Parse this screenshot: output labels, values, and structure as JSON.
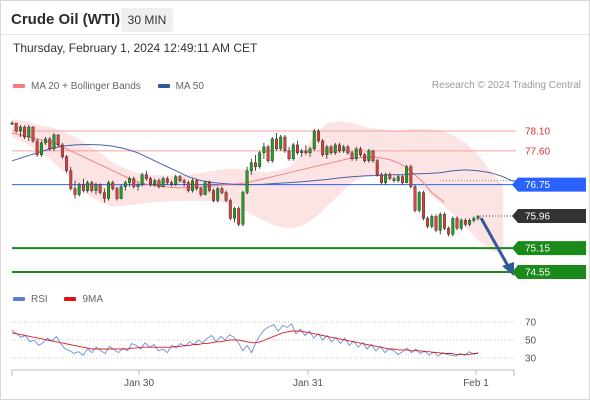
{
  "header": {
    "title": "Crude Oil (WTI)",
    "timeframe": "30 MIN"
  },
  "timestamp": "Thursday, February 1, 2024 12:49:11 AM CET",
  "legend_top": [
    {
      "label": "MA 20 + Bollinger Bands",
      "color": "#f08080"
    },
    {
      "label": "MA 50",
      "color": "#2f5b9c"
    }
  ],
  "credit": "Research © 2024 Trading Central",
  "legend_bottom": [
    {
      "label": "RSI",
      "color": "#5b7fd6"
    },
    {
      "label": "9MA",
      "color": "#e01010"
    }
  ],
  "colors": {
    "bullish": "#1fa11f",
    "bearish": "#d94040",
    "resistance": "#f5a0a0",
    "pivot": "#2962ff",
    "support": "#1a8a1a",
    "current": "#333333",
    "arrow": "#2f5b9c",
    "band_fill": "#fde4e4",
    "ma20": "#f08080",
    "ma50": "#4a5fa8",
    "rsi": "#6a8fe0",
    "rsi_ma": "#d82020"
  },
  "chart_data": [
    {
      "type": "candlestick",
      "title": "Crude Oil (WTI)",
      "timeframe": "30 MIN",
      "x_tick_labels": [
        "Jan 30",
        "Jan 31",
        "Feb 1"
      ],
      "ylim": [
        74.2,
        78.55
      ],
      "levels": [
        {
          "value": 78.1,
          "label": "78.10",
          "kind": "resistance"
        },
        {
          "value": 77.6,
          "label": "77.60",
          "kind": "resistance"
        },
        {
          "value": 76.75,
          "label": "76.75",
          "kind": "pivot"
        },
        {
          "value": 75.96,
          "label": "75.96",
          "kind": "current"
        },
        {
          "value": 75.15,
          "label": "75.15",
          "kind": "support"
        },
        {
          "value": 74.55,
          "label": "74.55",
          "kind": "support"
        }
      ],
      "candles": [
        [
          78.3,
          78.35,
          78.25,
          78.3
        ],
        [
          78.3,
          78.28,
          78.05,
          78.1
        ],
        [
          78.1,
          78.25,
          77.95,
          78.2
        ],
        [
          78.2,
          78.24,
          77.9,
          77.95
        ],
        [
          77.95,
          78.25,
          77.85,
          78.2
        ],
        [
          78.2,
          78.22,
          77.8,
          77.85
        ],
        [
          77.85,
          77.9,
          77.45,
          77.5
        ],
        [
          77.5,
          77.85,
          77.45,
          77.8
        ],
        [
          77.8,
          77.95,
          77.75,
          77.9
        ],
        [
          77.9,
          77.95,
          77.6,
          77.65
        ],
        [
          77.65,
          78.05,
          77.6,
          78.0
        ],
        [
          78.0,
          78.02,
          77.7,
          77.75
        ],
        [
          77.75,
          77.8,
          77.4,
          77.45
        ],
        [
          77.45,
          77.5,
          77.05,
          77.1
        ],
        [
          77.1,
          77.2,
          76.6,
          76.65
        ],
        [
          76.65,
          76.85,
          76.4,
          76.5
        ],
        [
          76.5,
          76.8,
          76.45,
          76.75
        ],
        [
          76.75,
          76.9,
          76.55,
          76.6
        ],
        [
          76.6,
          76.85,
          76.55,
          76.8
        ],
        [
          76.8,
          76.85,
          76.55,
          76.6
        ],
        [
          76.6,
          76.8,
          76.5,
          76.75
        ],
        [
          76.75,
          76.78,
          76.5,
          76.55
        ],
        [
          76.55,
          76.65,
          76.3,
          76.4
        ],
        [
          76.4,
          76.85,
          76.35,
          76.8
        ],
        [
          76.8,
          76.85,
          76.6,
          76.65
        ],
        [
          76.65,
          76.7,
          76.35,
          76.4
        ],
        [
          76.4,
          76.75,
          76.38,
          76.7
        ],
        [
          76.7,
          76.85,
          76.6,
          76.8
        ],
        [
          76.8,
          76.95,
          76.7,
          76.9
        ],
        [
          76.9,
          76.95,
          76.65,
          76.7
        ],
        [
          76.7,
          76.8,
          76.6,
          76.75
        ],
        [
          76.75,
          77.05,
          76.7,
          77.0
        ],
        [
          77.0,
          77.1,
          76.85,
          76.9
        ],
        [
          76.9,
          76.95,
          76.7,
          76.75
        ],
        [
          76.75,
          76.9,
          76.7,
          76.85
        ],
        [
          76.85,
          76.9,
          76.65,
          76.7
        ],
        [
          76.7,
          76.95,
          76.68,
          76.9
        ],
        [
          76.9,
          76.95,
          76.75,
          76.8
        ],
        [
          76.8,
          76.85,
          76.7,
          76.75
        ],
        [
          76.75,
          77.0,
          76.72,
          76.95
        ],
        [
          76.95,
          77.0,
          76.8,
          76.85
        ],
        [
          76.85,
          76.9,
          76.7,
          76.8
        ],
        [
          76.8,
          76.85,
          76.55,
          76.6
        ],
        [
          76.6,
          76.9,
          76.55,
          76.85
        ],
        [
          76.85,
          76.88,
          76.6,
          76.65
        ],
        [
          76.65,
          76.7,
          76.45,
          76.5
        ],
        [
          76.5,
          76.85,
          76.48,
          76.8
        ],
        [
          76.8,
          76.85,
          76.55,
          76.6
        ],
        [
          76.6,
          76.65,
          76.3,
          76.35
        ],
        [
          76.35,
          76.7,
          76.3,
          76.65
        ],
        [
          76.65,
          76.7,
          76.5,
          76.55
        ],
        [
          76.55,
          76.6,
          76.3,
          76.35
        ],
        [
          76.35,
          76.4,
          75.85,
          75.9
        ],
        [
          75.9,
          76.2,
          75.8,
          76.15
        ],
        [
          76.15,
          76.2,
          75.7,
          75.75
        ],
        [
          75.75,
          76.6,
          75.7,
          76.55
        ],
        [
          76.55,
          77.2,
          76.5,
          77.1
        ],
        [
          77.1,
          77.4,
          77.0,
          77.3
        ],
        [
          77.3,
          77.5,
          77.1,
          77.2
        ],
        [
          77.2,
          77.6,
          77.15,
          77.55
        ],
        [
          77.55,
          77.8,
          77.4,
          77.7
        ],
        [
          77.7,
          77.75,
          77.3,
          77.35
        ],
        [
          77.35,
          77.95,
          77.3,
          77.9
        ],
        [
          77.9,
          78.05,
          77.6,
          77.65
        ],
        [
          77.65,
          78.0,
          77.6,
          77.95
        ],
        [
          77.95,
          78.0,
          77.55,
          77.6
        ],
        [
          77.6,
          77.7,
          77.35,
          77.4
        ],
        [
          77.4,
          77.8,
          77.35,
          77.75
        ],
        [
          77.75,
          77.85,
          77.5,
          77.55
        ],
        [
          77.55,
          77.65,
          77.45,
          77.6
        ],
        [
          77.6,
          77.75,
          77.5,
          77.55
        ],
        [
          77.55,
          77.7,
          77.45,
          77.65
        ],
        [
          77.65,
          78.15,
          77.6,
          78.1
        ],
        [
          78.1,
          78.15,
          77.8,
          77.85
        ],
        [
          77.85,
          77.9,
          77.45,
          77.5
        ],
        [
          77.5,
          77.75,
          77.4,
          77.7
        ],
        [
          77.7,
          77.75,
          77.5,
          77.55
        ],
        [
          77.55,
          77.8,
          77.5,
          77.75
        ],
        [
          77.75,
          77.8,
          77.55,
          77.6
        ],
        [
          77.6,
          77.75,
          77.55,
          77.7
        ],
        [
          77.7,
          77.75,
          77.5,
          77.55
        ],
        [
          77.55,
          77.6,
          77.35,
          77.4
        ],
        [
          77.4,
          77.7,
          77.35,
          77.65
        ],
        [
          77.65,
          77.7,
          77.45,
          77.5
        ],
        [
          77.5,
          77.55,
          77.3,
          77.35
        ],
        [
          77.35,
          77.65,
          77.3,
          77.6
        ],
        [
          77.6,
          77.62,
          77.3,
          77.35
        ],
        [
          77.35,
          77.4,
          76.95,
          77.0
        ],
        [
          77.0,
          77.05,
          76.75,
          76.8
        ],
        [
          76.8,
          77.05,
          76.75,
          77.0
        ],
        [
          77.0,
          77.05,
          76.85,
          76.9
        ],
        [
          76.9,
          76.95,
          76.8,
          76.85
        ],
        [
          76.85,
          77.0,
          76.8,
          76.95
        ],
        [
          76.95,
          77.0,
          76.75,
          76.8
        ],
        [
          76.8,
          77.25,
          76.78,
          77.2
        ],
        [
          77.2,
          77.25,
          76.65,
          76.7
        ],
        [
          76.7,
          76.75,
          76.05,
          76.1
        ],
        [
          76.1,
          76.6,
          76.05,
          76.55
        ],
        [
          76.55,
          76.6,
          75.85,
          75.9
        ],
        [
          75.9,
          75.95,
          75.65,
          75.7
        ],
        [
          75.7,
          76.0,
          75.65,
          75.95
        ],
        [
          75.95,
          76.0,
          75.55,
          75.6
        ],
        [
          75.6,
          76.05,
          75.5,
          76.0
        ],
        [
          76.0,
          76.05,
          75.6,
          75.65
        ],
        [
          75.65,
          75.7,
          75.45,
          75.5
        ],
        [
          75.5,
          75.95,
          75.45,
          75.9
        ],
        [
          75.9,
          75.95,
          75.6,
          75.65
        ],
        [
          75.65,
          75.9,
          75.6,
          75.85
        ],
        [
          75.85,
          75.9,
          75.7,
          75.75
        ],
        [
          75.75,
          75.9,
          75.7,
          75.85
        ],
        [
          75.85,
          75.95,
          75.8,
          75.9
        ],
        [
          75.9,
          75.98,
          75.85,
          75.96
        ]
      ],
      "ma20": [
        78.05,
        78.0,
        77.95,
        77.9,
        77.85,
        77.8,
        77.7,
        77.6,
        77.5,
        77.4,
        77.3,
        77.2,
        77.1,
        77.0,
        76.9,
        76.82,
        76.76,
        76.72,
        76.7,
        76.68,
        76.67,
        76.67,
        76.68,
        76.7,
        76.72,
        76.74,
        76.75,
        76.77,
        76.8,
        76.85,
        76.9,
        76.95,
        77.0,
        77.05,
        77.1,
        77.15,
        77.2,
        77.25,
        77.3,
        77.35,
        77.4,
        77.42,
        77.44,
        77.45,
        77.42,
        77.38,
        77.3,
        77.18,
        77.0,
        76.8,
        76.55,
        76.3
      ],
      "ma20_x": [
        0,
        2,
        4,
        6,
        8,
        10,
        12,
        14,
        16,
        18,
        20,
        22,
        24,
        26,
        28,
        30,
        32,
        34,
        36,
        38,
        40,
        42,
        44,
        46,
        48,
        50,
        52,
        54,
        56,
        58,
        60,
        62,
        64,
        66,
        68,
        70,
        72,
        74,
        76,
        78,
        80,
        82,
        84,
        86,
        88,
        90,
        92,
        94,
        96,
        98,
        100,
        103
      ],
      "band_upper": [
        78.4,
        78.35,
        78.25,
        78.2,
        78.1,
        77.95,
        77.75,
        77.55,
        77.3,
        77.15,
        77.05,
        77.0,
        76.98,
        76.98,
        77.0,
        77.05,
        77.1,
        77.15,
        77.15,
        77.1,
        77.05,
        77.1,
        77.2,
        77.5,
        78.0,
        78.3,
        78.35,
        78.3,
        78.2,
        78.15,
        78.12,
        78.12,
        78.15,
        78.15,
        78.12,
        78.0,
        77.8,
        77.5,
        77.1,
        76.7
      ],
      "band_lower": [
        77.95,
        77.8,
        77.6,
        77.4,
        77.1,
        76.8,
        76.5,
        76.3,
        76.2,
        76.22,
        76.25,
        76.3,
        76.32,
        76.33,
        76.34,
        76.34,
        76.33,
        76.3,
        76.2,
        76.0,
        75.85,
        75.7,
        75.65,
        75.7,
        75.9,
        76.2,
        76.5,
        76.8,
        76.95,
        77.0,
        77.0,
        76.9,
        76.75,
        76.55,
        76.3,
        76.0,
        75.7,
        75.35,
        75.1,
        75.0
      ],
      "band_x": [
        0,
        3,
        6,
        9,
        12,
        15,
        18,
        21,
        24,
        27,
        30,
        33,
        36,
        39,
        42,
        45,
        48,
        51,
        54,
        57,
        60,
        63,
        66,
        69,
        72,
        75,
        78,
        81,
        84,
        87,
        90,
        93,
        96,
        99,
        102,
        105,
        108,
        111,
        114,
        117
      ],
      "ma50": [
        77.35,
        77.45,
        77.55,
        77.65,
        77.72,
        77.75,
        77.76,
        77.75,
        77.72,
        77.65,
        77.55,
        77.4,
        77.25,
        77.1,
        76.95,
        76.85,
        76.8,
        76.77,
        76.75,
        76.75,
        76.76,
        76.78,
        76.8,
        76.82,
        76.85,
        76.88,
        76.92,
        76.95,
        76.97,
        76.98,
        77.0,
        77.0,
        77.02,
        77.03,
        77.05,
        77.1,
        77.12,
        77.1,
        77.05,
        76.95,
        76.85,
        76.8
      ],
      "ma50_x": [
        0,
        3,
        6,
        9,
        12,
        15,
        18,
        21,
        24,
        27,
        30,
        33,
        36,
        39,
        42,
        45,
        48,
        51,
        54,
        57,
        60,
        63,
        66,
        69,
        72,
        75,
        78,
        81,
        84,
        87,
        90,
        93,
        96,
        99,
        102,
        105,
        108,
        111,
        114,
        117,
        119,
        124
      ],
      "forecast_arrow": {
        "from": 75.96,
        "to": 74.6
      }
    },
    {
      "type": "line",
      "title": "RSI",
      "yticks": [
        70,
        50,
        30
      ],
      "ylim": [
        20,
        80
      ],
      "series": [
        {
          "name": "RSI",
          "values": [
            61,
            57,
            53,
            55,
            48,
            50,
            44,
            47,
            52,
            49,
            54,
            46,
            40,
            38,
            35,
            37,
            33,
            40,
            36,
            42,
            38,
            35,
            43,
            39,
            36,
            41,
            38,
            46,
            44,
            40,
            47,
            42,
            45,
            38,
            40,
            36,
            44,
            41,
            46,
            43,
            48,
            45,
            50,
            47,
            52,
            55,
            48,
            54,
            50,
            56,
            53,
            47,
            38,
            44,
            36,
            48,
            56,
            62,
            65,
            67,
            60,
            66,
            64,
            68,
            57,
            62,
            55,
            60,
            52,
            57,
            50,
            55,
            48,
            53,
            46,
            52,
            44,
            49,
            42,
            47,
            40,
            45,
            38,
            43,
            36,
            40,
            38,
            34,
            37,
            41,
            36,
            40,
            35,
            38,
            33,
            37,
            32,
            36,
            34,
            33,
            32,
            35,
            33,
            37,
            34,
            36
          ]
        },
        {
          "name": "9MA",
          "values": [
            58,
            57,
            56,
            55,
            54,
            53,
            52,
            51,
            50,
            49,
            48,
            47,
            46,
            45,
            44,
            43,
            42,
            41,
            40,
            40,
            40,
            40,
            40,
            40,
            40,
            40,
            40,
            41,
            41,
            42,
            42,
            42,
            42,
            42,
            42,
            42,
            42,
            43,
            43,
            44,
            44,
            45,
            45,
            46,
            46,
            47,
            48,
            48,
            49,
            50,
            50,
            50,
            49,
            48,
            47,
            47,
            48,
            50,
            52,
            54,
            56,
            58,
            59,
            60,
            60,
            60,
            59,
            58,
            57,
            56,
            55,
            54,
            53,
            52,
            51,
            50,
            49,
            48,
            47,
            46,
            45,
            44,
            43,
            42,
            41,
            40,
            40,
            39,
            39,
            39,
            38,
            38,
            38,
            37,
            37,
            36,
            36,
            35,
            35,
            35,
            34,
            34,
            34,
            34,
            35,
            35
          ]
        }
      ]
    }
  ]
}
